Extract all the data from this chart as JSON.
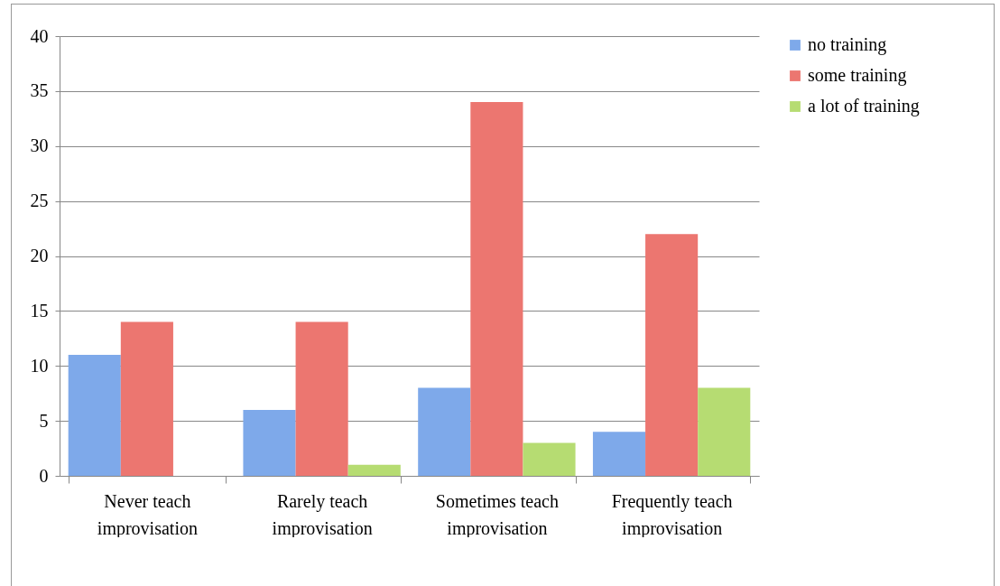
{
  "chart_data": {
    "type": "bar",
    "categories": [
      "Never teach improvisation",
      "Rarely teach improvisation",
      "Sometimes teach improvisation",
      "Frequently teach improvisation"
    ],
    "series": [
      {
        "name": "no training",
        "color": "#7ea9ea",
        "values": [
          11,
          6,
          8,
          4
        ]
      },
      {
        "name": "some training",
        "color": "#ec7670",
        "values": [
          14,
          14,
          34,
          22
        ]
      },
      {
        "name": "a lot of training",
        "color": "#b6dc72",
        "values": [
          0,
          1,
          3,
          8
        ]
      }
    ],
    "ylim": [
      0,
      40
    ],
    "yticks": [
      0,
      5,
      10,
      15,
      20,
      25,
      30,
      35,
      40
    ],
    "grid": "y",
    "legend": "right"
  }
}
